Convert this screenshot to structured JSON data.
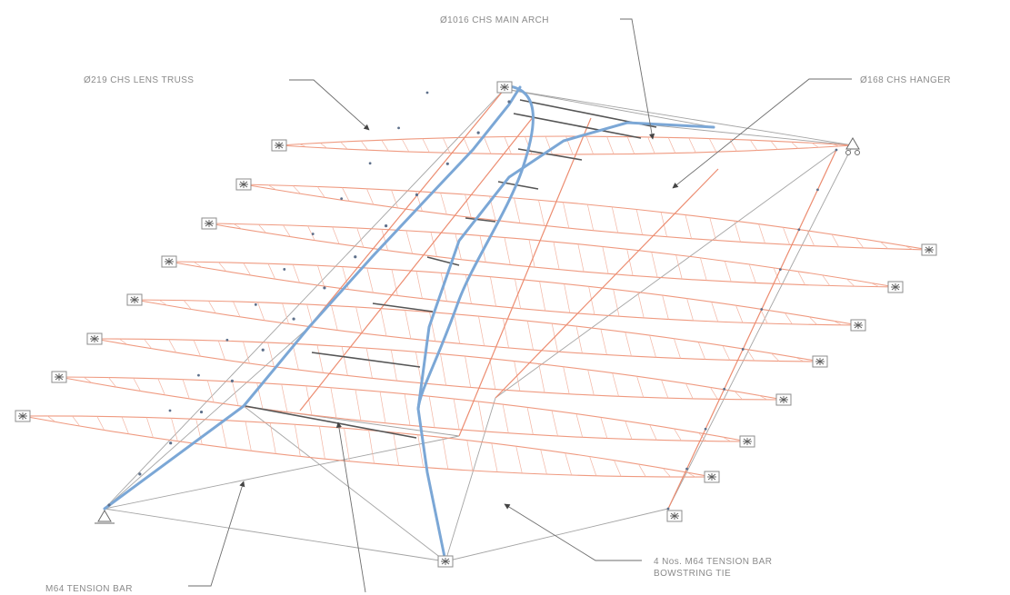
{
  "labels": {
    "main_arch": "Ø1016 CHS MAIN ARCH",
    "lens_truss": "Ø219 CHS LENS TRUSS",
    "hanger": "Ø168 CHS HANGER",
    "tension_bar": "M64 TENSION BAR",
    "bowstring_line1": "4 Nos. M64 TENSION BAR",
    "bowstring_line2": "BOWSTRING TIE"
  },
  "colors": {
    "lens_truss": "#ef9a80",
    "main_arch": "#7ba7d6",
    "tension_bar": "#a4a4a4",
    "dark_member": "#555555",
    "label_text": "#8a8a8a"
  },
  "icons": [
    "pin-support-icon",
    "roller-support-icon",
    "fixed-support-icon"
  ]
}
